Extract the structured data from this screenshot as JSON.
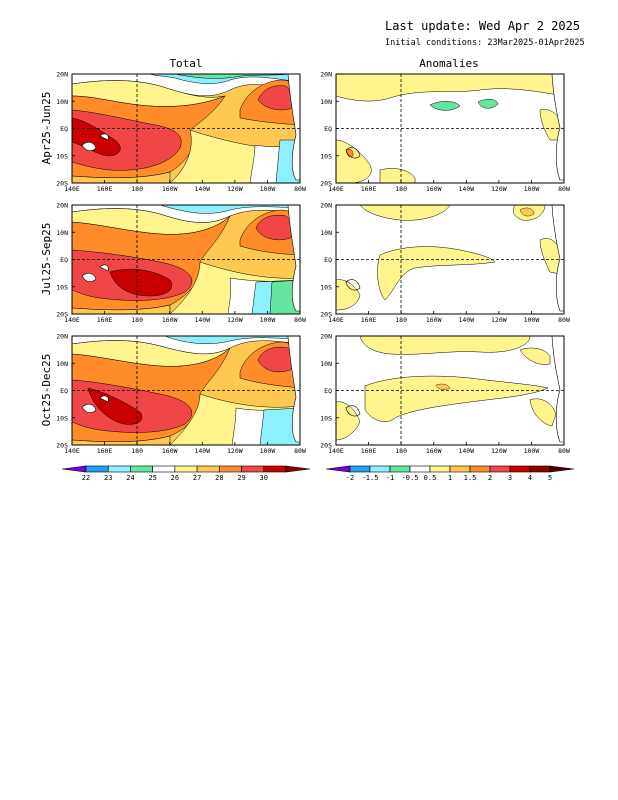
{
  "header": {
    "last_update": "Last update: Wed Apr 2 2025",
    "initial_conditions": "Initial conditions: 23Mar2025-01Apr2025"
  },
  "columns": {
    "total": "Total",
    "anomalies": "Anomalies"
  },
  "rows": [
    "Apr25-Jun25",
    "Jul25-Sep25",
    "Oct25-Dec25"
  ],
  "lat_ticks": [
    "20N",
    "10N",
    "EQ",
    "10S",
    "20S"
  ],
  "lon_ticks": [
    "140E",
    "160E",
    "180",
    "160W",
    "140W",
    "120W",
    "100W",
    "80W"
  ],
  "total_colorbar": {
    "labels": [
      "22",
      "23",
      "24",
      "25",
      "26",
      "27",
      "28",
      "29",
      "30"
    ],
    "colors": [
      "#7a00e6",
      "#1ea0ff",
      "#8cf0ff",
      "#64e6a0",
      "#ffffff",
      "#fff58c",
      "#ffc850",
      "#ff8c28",
      "#f04646",
      "#c80000",
      "#8c0000"
    ]
  },
  "anomaly_colorbar": {
    "labels": [
      "-2",
      "-1.5",
      "-1",
      "-0.5",
      "0.5",
      "1",
      "1.5",
      "2",
      "3",
      "4",
      "5"
    ],
    "colors": [
      "#7a00e6",
      "#1ea0ff",
      "#8cf0ff",
      "#64e6a0",
      "#ffffff",
      "#fff58c",
      "#ffc850",
      "#ff8c28",
      "#f04646",
      "#c80000",
      "#8c0000",
      "#500000"
    ]
  }
}
